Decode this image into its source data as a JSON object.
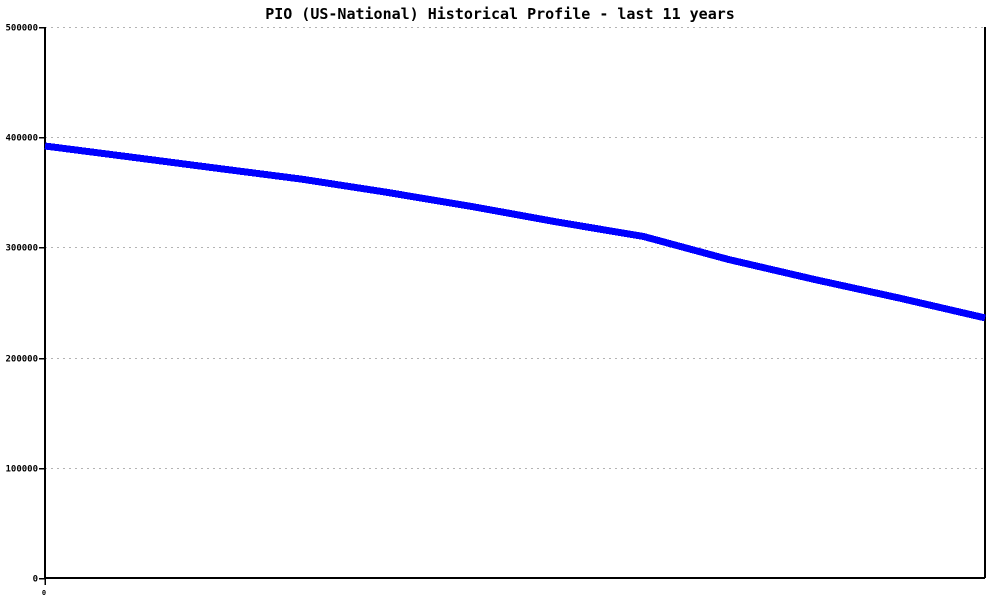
{
  "page": {
    "background_color": "#ffffff"
  },
  "chart_data": {
    "type": "line",
    "title": "PIO (US-National) Historical Profile - last 11 years",
    "xlabel": "",
    "ylabel": "",
    "x": [
      0,
      1,
      2,
      3,
      4,
      5,
      6,
      7,
      8,
      9,
      10,
      11
    ],
    "series": [
      {
        "name": "PIO (US-National)",
        "color": "#0000ff",
        "values": [
          392000,
          382000,
          372000,
          362000,
          350000,
          337000,
          323000,
          310000,
          289000,
          271000,
          254000,
          236000
        ]
      }
    ],
    "ylim": [
      0,
      500000
    ],
    "yticks": [
      0,
      100000,
      200000,
      300000,
      400000,
      500000
    ],
    "ytick_labels": [
      "0",
      "100000",
      "200000",
      "300000",
      "400000",
      "500000"
    ],
    "xtick_labels": [
      "0"
    ],
    "grid": "horizontal-dotted",
    "legend": "none",
    "colors": {
      "line": "#0000ff",
      "grid": "#b3b3b3",
      "axis": "#000000",
      "title": "#000000",
      "background": "#ffffff"
    }
  }
}
